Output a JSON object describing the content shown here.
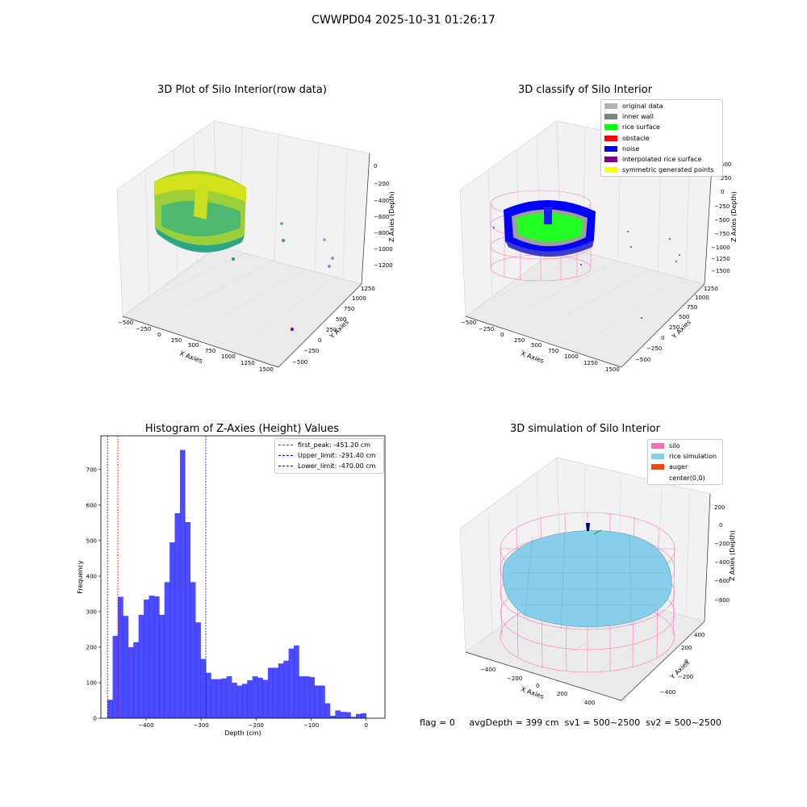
{
  "suptitle": "CWWPD04 2025-10-31 01:26:17",
  "panels": [
    {
      "title": "3D Plot of Silo Interior(row data)",
      "xlabel": "X Axies",
      "ylabel": "Y Axies",
      "zlabel": "Z Axies (Depth)",
      "xticks": [
        "−500",
        "−250",
        "0",
        "250",
        "500",
        "750",
        "1000",
        "1250",
        "1500"
      ],
      "yticks": [
        "−500",
        "−250",
        "0",
        "250",
        "500",
        "750",
        "1000",
        "1250"
      ],
      "zticks": [
        "0",
        "−200",
        "−400",
        "−600",
        "−800",
        "−1000",
        "−1200"
      ]
    },
    {
      "title": "3D classify of Silo Interior",
      "xlabel": "X Axies",
      "ylabel": "Y Axies",
      "zlabel": "Z Axies (Depth)",
      "xticks": [
        "−500",
        "−250",
        "0",
        "250",
        "500",
        "750",
        "1000",
        "1250",
        "1500"
      ],
      "yticks": [
        "−500",
        "−250",
        "0",
        "250",
        "500",
        "750",
        "1000",
        "1250"
      ],
      "zticks": [
        "500",
        "250",
        "0",
        "−250",
        "−500",
        "−750",
        "−1000",
        "−1250",
        "−1500"
      ],
      "legend": [
        {
          "label": "original data",
          "color": "#b3b3b3"
        },
        {
          "label": "inner wall",
          "color": "#808080"
        },
        {
          "label": "rice surface",
          "color": "#00ff00"
        },
        {
          "label": "obstacle",
          "color": "#ff0000"
        },
        {
          "label": "noise",
          "color": "#0000ff"
        },
        {
          "label": "interpolated rice surface",
          "color": "#800080"
        },
        {
          "label": "symmetric generated points",
          "color": "#ffff00"
        }
      ]
    },
    {
      "title": "Histogram of Z-Axies (Height) Values"
    },
    {
      "title": "3D simulation of Silo Interior",
      "xlabel": "X Axies",
      "ylabel": "Y Axies",
      "zlabel": "Z Axies (Depth)",
      "xticks": [
        "−400",
        "−200",
        "0",
        "200",
        "400"
      ],
      "yticks": [
        "−400",
        "−200",
        "0",
        "200",
        "400"
      ],
      "zticks": [
        "200",
        "0",
        "−200",
        "−400",
        "−600",
        "−800"
      ],
      "legend": [
        {
          "label": "silo",
          "color": "#ff69b4"
        },
        {
          "label": "rice simulation",
          "color": "#87ceeb"
        },
        {
          "label": "auger",
          "color": "#ff4500"
        },
        {
          "label": "center(0,0)",
          "color": "#ffffff"
        }
      ]
    }
  ],
  "chart_data": {
    "type": "bar",
    "title": "Histogram of Z-Axies (Height) Values",
    "xlabel": "Depth (cm)",
    "ylabel": "Frequency",
    "xlim": [
      -482,
      34
    ],
    "ylim": [
      0,
      795
    ],
    "xticks": [
      -400,
      -300,
      -200,
      -100,
      0
    ],
    "xtick_labels": [
      "−400",
      "−300",
      "−200",
      "−100",
      "0"
    ],
    "yticks": [
      0,
      100,
      200,
      300,
      400,
      500,
      600,
      700
    ],
    "bar_color": "#0000ff",
    "bin_edges": [
      -470,
      -460.6,
      -451.2,
      -441.8,
      -432.4,
      -423,
      -413.6,
      -404.2,
      -394.8,
      -385.4,
      -376,
      -366.6,
      -357.2,
      -347.8,
      -338.4,
      -329,
      -319.6,
      -310.2,
      -300.8,
      -291.4,
      -282,
      -272.6,
      -263.2,
      -253.8,
      -244.4,
      -235,
      -225.6,
      -216.2,
      -206.8,
      -197.4,
      -188,
      -178.6,
      -169.2,
      -159.8,
      -150.4,
      -141,
      -131.6,
      -122.2,
      -112.8,
      -103.4,
      -94,
      -84.6,
      -75.2,
      -65.8,
      -56.4,
      -47,
      -37.6,
      -28.2,
      -18.8,
      -9.4,
      0
    ],
    "counts": [
      52,
      232,
      342,
      288,
      200,
      214,
      291,
      334,
      345,
      343,
      291,
      383,
      495,
      577,
      755,
      552,
      383,
      270,
      167,
      128,
      110,
      110,
      112,
      118,
      100,
      92,
      97,
      107,
      118,
      114,
      108,
      142,
      142,
      154,
      162,
      196,
      205,
      118,
      118,
      116,
      92,
      92,
      42,
      7,
      22,
      18,
      17,
      4,
      12,
      14
    ],
    "vlines": [
      {
        "label": "first_peak: -451.20 cm",
        "x": -451.2,
        "color": "#ff0000"
      },
      {
        "label": "Upper_limit: -291.40 cm",
        "x": -291.4,
        "color": "#0000ff"
      },
      {
        "label": "Lower_limit: -470.00 cm",
        "x": -470.0,
        "color": "#0000ff"
      }
    ],
    "legend_position": "top-right"
  },
  "footer": {
    "flag": "flag = 0",
    "avg": "avgDepth = 399 cm",
    "sv1": "sv1 = 500~2500",
    "sv2": "sv2 = 500~2500"
  }
}
